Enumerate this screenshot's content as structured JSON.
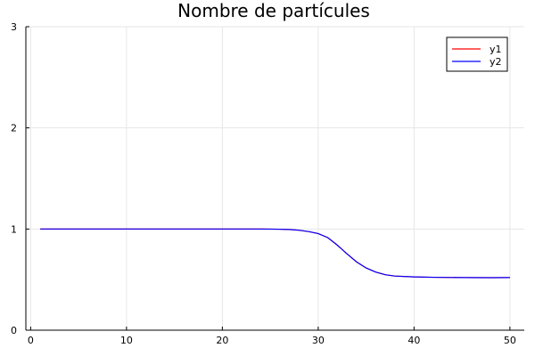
{
  "chart_data": {
    "type": "line",
    "title": "Nombre de partícules",
    "xlabel": "",
    "ylabel": "",
    "xlim": [
      -0.5,
      51.5
    ],
    "ylim": [
      0,
      3
    ],
    "xticks": [
      0,
      10,
      20,
      30,
      40,
      50
    ],
    "yticks": [
      0,
      1,
      2,
      3
    ],
    "xtick_labels": [
      "0",
      "10",
      "20",
      "30",
      "40",
      "50"
    ],
    "ytick_labels": [
      "0",
      "1",
      "2",
      "3"
    ],
    "grid": true,
    "legend_position": "top-right",
    "series": [
      {
        "name": "y1",
        "color": "#ff0000",
        "x": [
          1,
          5,
          10,
          15,
          20,
          24,
          26,
          27,
          28,
          29,
          30,
          31,
          32,
          33,
          34,
          35,
          36,
          37,
          38,
          40,
          42,
          45,
          48,
          50
        ],
        "values": [
          1.0,
          1.0,
          1.0,
          1.0,
          1.0,
          1.0,
          0.998,
          0.995,
          0.988,
          0.975,
          0.955,
          0.915,
          0.84,
          0.755,
          0.675,
          0.615,
          0.575,
          0.548,
          0.535,
          0.527,
          0.523,
          0.52,
          0.519,
          0.52
        ]
      },
      {
        "name": "y2",
        "color": "#0000ff",
        "x": [
          1,
          5,
          10,
          15,
          20,
          24,
          26,
          27,
          28,
          29,
          30,
          31,
          32,
          33,
          34,
          35,
          36,
          37,
          38,
          40,
          42,
          45,
          48,
          50
        ],
        "values": [
          1.0,
          1.0,
          1.0,
          1.0,
          1.0,
          1.0,
          0.998,
          0.995,
          0.988,
          0.975,
          0.955,
          0.915,
          0.84,
          0.755,
          0.675,
          0.615,
          0.575,
          0.548,
          0.535,
          0.527,
          0.523,
          0.52,
          0.519,
          0.52
        ]
      }
    ]
  }
}
